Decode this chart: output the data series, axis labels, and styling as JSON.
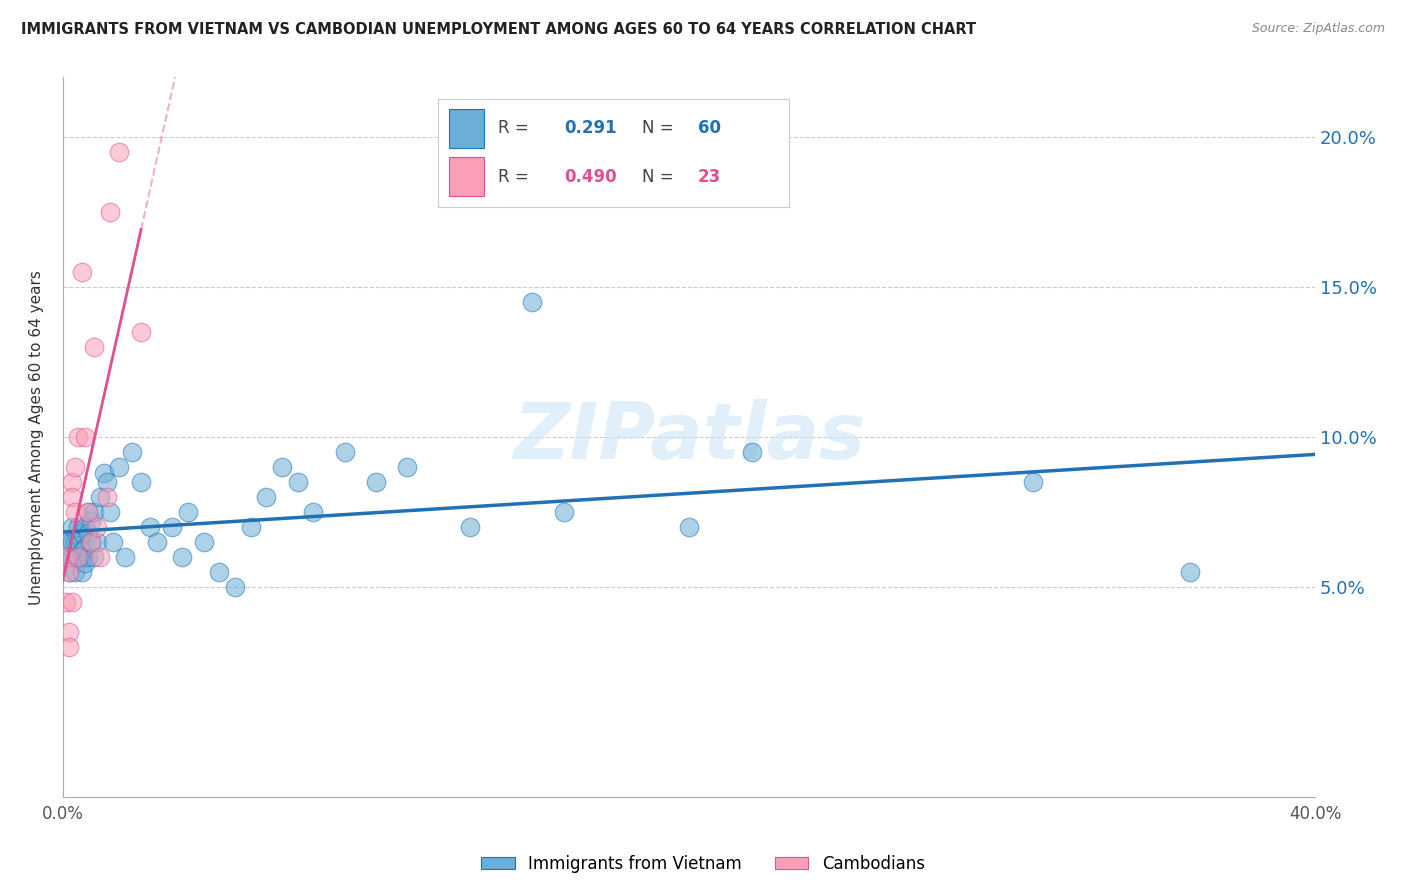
{
  "title": "IMMIGRANTS FROM VIETNAM VS CAMBODIAN UNEMPLOYMENT AMONG AGES 60 TO 64 YEARS CORRELATION CHART",
  "source": "Source: ZipAtlas.com",
  "ylabel_left": "Unemployment Among Ages 60 to 64 years",
  "xlim": [
    0.0,
    0.4
  ],
  "ylim": [
    -0.02,
    0.22
  ],
  "blue_color": "#6baed6",
  "pink_color": "#fa9fb5",
  "blue_line_color": "#2171b5",
  "pink_line_color": "#e05090",
  "legend_R_blue": "0.291",
  "legend_N_blue": "60",
  "legend_R_pink": "0.490",
  "legend_N_pink": "23",
  "legend_label_blue": "Immigrants from Vietnam",
  "legend_label_pink": "Cambodians",
  "watermark": "ZIPatlas",
  "blue_x": [
    0.001,
    0.002,
    0.002,
    0.003,
    0.003,
    0.003,
    0.004,
    0.004,
    0.004,
    0.005,
    0.005,
    0.005,
    0.005,
    0.006,
    0.006,
    0.006,
    0.006,
    0.007,
    0.007,
    0.007,
    0.008,
    0.008,
    0.008,
    0.009,
    0.009,
    0.01,
    0.01,
    0.011,
    0.012,
    0.013,
    0.014,
    0.015,
    0.016,
    0.018,
    0.02,
    0.022,
    0.025,
    0.028,
    0.03,
    0.035,
    0.038,
    0.04,
    0.045,
    0.05,
    0.055,
    0.06,
    0.065,
    0.07,
    0.075,
    0.08,
    0.09,
    0.1,
    0.11,
    0.13,
    0.15,
    0.16,
    0.2,
    0.22,
    0.31,
    0.36
  ],
  "blue_y": [
    0.06,
    0.055,
    0.065,
    0.06,
    0.065,
    0.07,
    0.055,
    0.06,
    0.065,
    0.06,
    0.062,
    0.065,
    0.07,
    0.055,
    0.06,
    0.062,
    0.068,
    0.058,
    0.063,
    0.07,
    0.06,
    0.068,
    0.075,
    0.065,
    0.072,
    0.06,
    0.075,
    0.065,
    0.08,
    0.088,
    0.085,
    0.075,
    0.065,
    0.09,
    0.06,
    0.095,
    0.085,
    0.07,
    0.065,
    0.07,
    0.06,
    0.075,
    0.065,
    0.055,
    0.05,
    0.07,
    0.08,
    0.09,
    0.085,
    0.075,
    0.095,
    0.085,
    0.09,
    0.07,
    0.145,
    0.075,
    0.07,
    0.095,
    0.085,
    0.055
  ],
  "pink_x": [
    0.001,
    0.001,
    0.002,
    0.002,
    0.002,
    0.003,
    0.003,
    0.003,
    0.004,
    0.004,
    0.005,
    0.005,
    0.006,
    0.007,
    0.008,
    0.009,
    0.01,
    0.011,
    0.012,
    0.014,
    0.015,
    0.018,
    0.025
  ],
  "pink_y": [
    0.06,
    0.045,
    0.055,
    0.035,
    0.03,
    0.085,
    0.045,
    0.08,
    0.09,
    0.075,
    0.06,
    0.1,
    0.155,
    0.1,
    0.075,
    0.065,
    0.13,
    0.07,
    0.06,
    0.08,
    0.175,
    0.195,
    0.135
  ],
  "background_color": "#ffffff",
  "grid_color": "#cccccc",
  "blue_regression_start_y": 0.06,
  "blue_regression_end_y": 0.085,
  "pink_regression_x0": 0.0,
  "pink_regression_y0": 0.045,
  "pink_regression_x1": 0.025,
  "pink_regression_y1": 0.22
}
